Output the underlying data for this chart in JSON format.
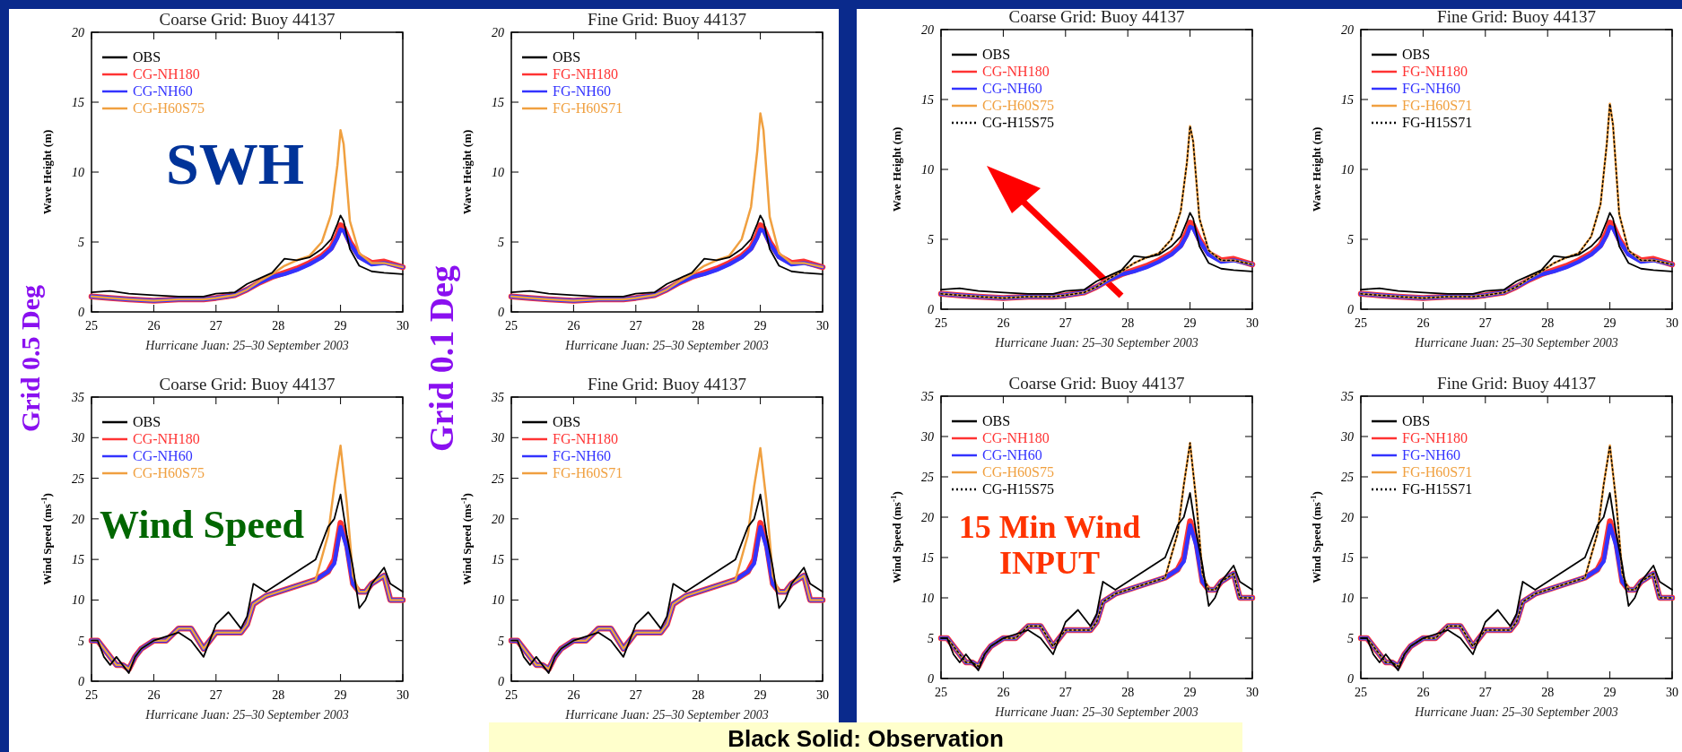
{
  "chart_data": [
    {
      "type": "line",
      "title": "Coarse Grid: Buoy 44137",
      "xlabel": "Hurricane Juan: 25–30 September 2003",
      "ylabel": "Wave Height (m)",
      "xlim": [
        25,
        30
      ],
      "xticks": [
        25,
        26,
        27,
        28,
        29,
        30
      ],
      "ylim": [
        0,
        20
      ],
      "yticks": [
        0,
        5,
        10,
        15,
        20
      ],
      "legend": "top left",
      "x": [
        25,
        25.3,
        25.6,
        26,
        26.4,
        26.8,
        27,
        27.3,
        27.5,
        27.7,
        27.9,
        28.1,
        28.3,
        28.5,
        28.7,
        28.85,
        28.95,
        29,
        29.05,
        29.15,
        29.3,
        29.5,
        29.7,
        30
      ],
      "series": [
        {
          "name": "OBS",
          "color": "#000000",
          "values": [
            1.4,
            1.5,
            1.3,
            1.2,
            1.1,
            1.1,
            1.3,
            1.4,
            2,
            2.4,
            2.8,
            3.8,
            3.7,
            3.9,
            4.5,
            5.2,
            6.3,
            6.9,
            6.5,
            4.5,
            3.3,
            2.9,
            2.8,
            2.7
          ]
        },
        {
          "name": "CG-NH180",
          "color": "#ff3333",
          "values": [
            1.1,
            1,
            0.9,
            0.8,
            0.9,
            0.9,
            1,
            1.2,
            1.6,
            2.1,
            2.5,
            2.8,
            3.1,
            3.5,
            4,
            4.6,
            5.5,
            6.2,
            6,
            5,
            4,
            3.5,
            3.6,
            3.2
          ]
        },
        {
          "name": "CG-NH60",
          "color": "#3333ff",
          "values": [
            1.1,
            1,
            0.9,
            0.8,
            0.9,
            0.9,
            1,
            1.2,
            1.6,
            2.1,
            2.5,
            2.7,
            3,
            3.4,
            3.9,
            4.5,
            5.3,
            5.9,
            5.8,
            4.9,
            3.9,
            3.4,
            3.5,
            3.2
          ]
        },
        {
          "name": "CG-H60S75",
          "color": "#f0a040",
          "values": [
            1.1,
            1,
            0.9,
            0.8,
            0.9,
            0.9,
            1,
            1.2,
            1.6,
            2.2,
            2.7,
            3.3,
            3.7,
            4,
            5,
            7,
            10.5,
            13,
            12,
            6.5,
            4.2,
            3.5,
            3.5,
            3.2
          ]
        }
      ]
    },
    {
      "type": "line",
      "title": "Fine Grid: Buoy 44137",
      "xlabel": "Hurricane Juan: 25–30 September 2003",
      "ylabel": "Wave Height (m)",
      "xlim": [
        25,
        30
      ],
      "xticks": [
        25,
        26,
        27,
        28,
        29,
        30
      ],
      "ylim": [
        0,
        20
      ],
      "yticks": [
        0,
        5,
        10,
        15,
        20
      ],
      "legend": "top left",
      "x": [
        25,
        25.3,
        25.6,
        26,
        26.4,
        26.8,
        27,
        27.3,
        27.5,
        27.7,
        27.9,
        28.1,
        28.3,
        28.5,
        28.7,
        28.85,
        28.95,
        29,
        29.05,
        29.15,
        29.3,
        29.5,
        29.7,
        30
      ],
      "series": [
        {
          "name": "OBS",
          "color": "#000000",
          "values": [
            1.4,
            1.5,
            1.3,
            1.2,
            1.1,
            1.1,
            1.3,
            1.4,
            2,
            2.4,
            2.8,
            3.8,
            3.7,
            3.9,
            4.5,
            5.2,
            6.3,
            6.9,
            6.5,
            4.5,
            3.3,
            2.9,
            2.8,
            2.7
          ]
        },
        {
          "name": "FG-NH180",
          "color": "#ff3333",
          "values": [
            1.1,
            1,
            0.9,
            0.8,
            0.9,
            0.9,
            1,
            1.2,
            1.6,
            2.1,
            2.5,
            2.8,
            3.1,
            3.5,
            4,
            4.6,
            5.5,
            6.2,
            6,
            5,
            4,
            3.5,
            3.6,
            3.2
          ]
        },
        {
          "name": "FG-NH60",
          "color": "#3333ff",
          "values": [
            1.1,
            1,
            0.9,
            0.8,
            0.9,
            0.9,
            1,
            1.2,
            1.6,
            2.1,
            2.5,
            2.7,
            3,
            3.4,
            3.9,
            4.5,
            5.3,
            5.9,
            5.8,
            4.9,
            3.9,
            3.4,
            3.5,
            3.2
          ]
        },
        {
          "name": "FG-H60S71",
          "color": "#f0a040",
          "values": [
            1.1,
            1,
            0.9,
            0.8,
            0.9,
            0.9,
            1,
            1.2,
            1.6,
            2.2,
            2.7,
            3.3,
            3.7,
            4,
            5.2,
            7.5,
            11.5,
            14.2,
            13,
            6.8,
            4.2,
            3.5,
            3.5,
            3.2
          ]
        }
      ]
    },
    {
      "type": "line",
      "title": "Coarse Grid: Buoy 44137",
      "xlabel": "Hurricane Juan: 25–30 September 2003",
      "ylabel": "Wave Height (m)",
      "xlim": [
        25,
        30
      ],
      "xticks": [
        25,
        26,
        27,
        28,
        29,
        30
      ],
      "ylim": [
        0,
        20
      ],
      "yticks": [
        0,
        5,
        10,
        15,
        20
      ],
      "legend": "top left",
      "x": [
        25,
        25.3,
        25.6,
        26,
        26.4,
        26.8,
        27,
        27.3,
        27.5,
        27.7,
        27.9,
        28.1,
        28.3,
        28.5,
        28.7,
        28.85,
        28.95,
        29,
        29.05,
        29.15,
        29.3,
        29.5,
        29.7,
        30
      ],
      "series": [
        {
          "name": "OBS",
          "color": "#000000",
          "values": [
            1.4,
            1.5,
            1.3,
            1.2,
            1.1,
            1.1,
            1.3,
            1.4,
            2,
            2.4,
            2.8,
            3.8,
            3.7,
            3.9,
            4.5,
            5.2,
            6.3,
            6.9,
            6.5,
            4.5,
            3.3,
            2.9,
            2.8,
            2.7
          ]
        },
        {
          "name": "CG-NH180",
          "color": "#ff3333",
          "values": [
            1.1,
            1,
            0.9,
            0.8,
            0.9,
            0.9,
            1,
            1.2,
            1.6,
            2.1,
            2.5,
            2.8,
            3.1,
            3.5,
            4,
            4.6,
            5.5,
            6.2,
            6,
            5,
            4,
            3.5,
            3.6,
            3.2
          ]
        },
        {
          "name": "CG-NH60",
          "color": "#3333ff",
          "values": [
            1.1,
            1,
            0.9,
            0.8,
            0.9,
            0.9,
            1,
            1.2,
            1.6,
            2.1,
            2.5,
            2.7,
            3,
            3.4,
            3.9,
            4.5,
            5.3,
            5.9,
            5.8,
            4.9,
            3.9,
            3.4,
            3.5,
            3.2
          ]
        },
        {
          "name": "CG-H60S75",
          "color": "#f0a040",
          "values": [
            1.1,
            1,
            0.9,
            0.8,
            0.9,
            0.9,
            1,
            1.2,
            1.6,
            2.2,
            2.7,
            3.3,
            3.7,
            4,
            5,
            7,
            10.5,
            13.1,
            12,
            6.5,
            4.2,
            3.5,
            3.5,
            3.2
          ]
        },
        {
          "name": "CG-H15S75",
          "color": "#000000",
          "line_style": "dotted",
          "values": [
            1.1,
            1,
            0.9,
            0.8,
            0.9,
            0.9,
            1,
            1.2,
            1.6,
            2.2,
            2.7,
            3.3,
            3.7,
            4,
            5,
            7,
            10.5,
            13.1,
            12,
            6.5,
            4.2,
            3.5,
            3.5,
            3.2
          ]
        }
      ]
    },
    {
      "type": "line",
      "title": "Fine Grid: Buoy 44137",
      "xlabel": "Hurricane Juan: 25–30 September 2003",
      "ylabel": "Wave Height (m)",
      "xlim": [
        25,
        30
      ],
      "xticks": [
        25,
        26,
        27,
        28,
        29,
        30
      ],
      "ylim": [
        0,
        20
      ],
      "yticks": [
        0,
        5,
        10,
        15,
        20
      ],
      "legend": "top left",
      "x": [
        25,
        25.3,
        25.6,
        26,
        26.4,
        26.8,
        27,
        27.3,
        27.5,
        27.7,
        27.9,
        28.1,
        28.3,
        28.5,
        28.7,
        28.85,
        28.95,
        29,
        29.05,
        29.15,
        29.3,
        29.5,
        29.7,
        30
      ],
      "series": [
        {
          "name": "OBS",
          "color": "#000000",
          "values": [
            1.4,
            1.5,
            1.3,
            1.2,
            1.1,
            1.1,
            1.3,
            1.4,
            2,
            2.4,
            2.8,
            3.8,
            3.7,
            3.9,
            4.5,
            5.2,
            6.3,
            6.9,
            6.5,
            4.5,
            3.3,
            2.9,
            2.8,
            2.7
          ]
        },
        {
          "name": "FG-NH180",
          "color": "#ff3333",
          "values": [
            1.1,
            1,
            0.9,
            0.8,
            0.9,
            0.9,
            1,
            1.2,
            1.6,
            2.1,
            2.5,
            2.8,
            3.1,
            3.5,
            4,
            4.6,
            5.5,
            6.2,
            6,
            5,
            4,
            3.5,
            3.6,
            3.2
          ]
        },
        {
          "name": "FG-NH60",
          "color": "#3333ff",
          "values": [
            1.1,
            1,
            0.9,
            0.8,
            0.9,
            0.9,
            1,
            1.2,
            1.6,
            2.1,
            2.5,
            2.7,
            3,
            3.4,
            3.9,
            4.5,
            5.3,
            5.9,
            5.8,
            4.9,
            3.9,
            3.4,
            3.5,
            3.2
          ]
        },
        {
          "name": "FG-H60S71",
          "color": "#f0a040",
          "values": [
            1.1,
            1,
            0.9,
            0.8,
            0.9,
            0.9,
            1,
            1.2,
            1.6,
            2.2,
            2.7,
            3.3,
            3.7,
            4,
            5.2,
            7.5,
            11.8,
            14.7,
            13.2,
            6.8,
            4.2,
            3.5,
            3.5,
            3.2
          ]
        },
        {
          "name": "FG-H15S71",
          "color": "#000000",
          "line_style": "dotted",
          "values": [
            1.1,
            1,
            0.9,
            0.8,
            0.9,
            0.9,
            1,
            1.2,
            1.6,
            2.2,
            2.7,
            3.3,
            3.7,
            4,
            5.2,
            7.5,
            11.8,
            14.7,
            13.2,
            6.8,
            4.2,
            3.5,
            3.5,
            3.2
          ]
        }
      ]
    },
    {
      "type": "line",
      "title": "Coarse Grid: Buoy 44137",
      "xlabel": "Hurricane Juan: 25–30 September 2003",
      "ylabel": "Wind Speed (ms$^{-1}$)",
      "xlim": [
        25,
        30
      ],
      "xticks": [
        25,
        26,
        27,
        28,
        29,
        30
      ],
      "ylim": [
        0,
        35
      ],
      "yticks": [
        0,
        5,
        10,
        15,
        20,
        25,
        30,
        35
      ],
      "legend": "top left",
      "x": [
        25,
        25.1,
        25.2,
        25.3,
        25.4,
        25.5,
        25.6,
        25.7,
        25.8,
        26,
        26.2,
        26.4,
        26.6,
        26.8,
        27,
        27.2,
        27.4,
        27.5,
        27.6,
        27.8,
        28,
        28.2,
        28.4,
        28.6,
        28.8,
        28.9,
        29,
        29.1,
        29.2,
        29.3,
        29.4,
        29.5,
        29.7,
        29.8,
        30
      ],
      "series": [
        {
          "name": "OBS",
          "color": "#000000",
          "values": [
            5,
            5,
            3,
            2,
            3,
            2,
            1,
            3,
            4,
            5,
            5.5,
            6,
            5,
            3,
            7,
            8.5,
            6.5,
            8,
            12,
            11,
            12,
            13,
            14,
            15,
            19,
            20,
            23,
            18,
            14,
            9,
            10,
            12,
            14,
            12,
            11
          ]
        },
        {
          "name": "CG-NH180",
          "color": "#ff3333",
          "values": [
            5,
            5,
            4,
            3,
            2,
            2,
            1.5,
            3,
            4,
            5,
            5,
            6.5,
            6.5,
            4,
            6,
            6,
            6,
            7,
            9.5,
            10.5,
            11,
            11.5,
            12,
            12.5,
            13.5,
            15,
            19.5,
            17,
            12,
            11,
            11,
            12,
            13,
            10,
            10
          ]
        },
        {
          "name": "CG-NH60",
          "color": "#3333ff",
          "values": [
            5,
            5,
            4,
            3,
            2,
            2,
            1.5,
            3,
            4,
            5,
            5,
            6.5,
            6.5,
            4,
            6,
            6,
            6,
            7,
            9.5,
            10.5,
            11,
            11.5,
            12,
            12.5,
            13.5,
            14.5,
            19,
            16.5,
            12,
            11,
            11,
            12,
            13,
            10,
            10
          ]
        },
        {
          "name": "CG-H60S75",
          "color": "#f0a040",
          "values": [
            5,
            5,
            4,
            3,
            2,
            2,
            1.5,
            3,
            4,
            5,
            5,
            6.5,
            6.5,
            4,
            6,
            6,
            6,
            7,
            9.5,
            10.5,
            11,
            11.5,
            12,
            12.5,
            18,
            24,
            29,
            22,
            13,
            11,
            11,
            12,
            13,
            10,
            10
          ]
        }
      ]
    },
    {
      "type": "line",
      "title": "Fine Grid: Buoy 44137",
      "xlabel": "Hurricane Juan: 25–30 September 2003",
      "ylabel": "Wind Speed (ms$^{-1}$)",
      "xlim": [
        25,
        30
      ],
      "xticks": [
        25,
        26,
        27,
        28,
        29,
        30
      ],
      "ylim": [
        0,
        35
      ],
      "yticks": [
        0,
        5,
        10,
        15,
        20,
        25,
        30,
        35
      ],
      "legend": "top left",
      "x": [
        25,
        25.1,
        25.2,
        25.3,
        25.4,
        25.5,
        25.6,
        25.7,
        25.8,
        26,
        26.2,
        26.4,
        26.6,
        26.8,
        27,
        27.2,
        27.4,
        27.5,
        27.6,
        27.8,
        28,
        28.2,
        28.4,
        28.6,
        28.8,
        28.9,
        29,
        29.1,
        29.2,
        29.3,
        29.4,
        29.5,
        29.7,
        29.8,
        30
      ],
      "series": [
        {
          "name": "OBS",
          "color": "#000000",
          "values": [
            5,
            5,
            3,
            2,
            3,
            2,
            1,
            3,
            4,
            5,
            5.5,
            6,
            5,
            3,
            7,
            8.5,
            6.5,
            8,
            12,
            11,
            12,
            13,
            14,
            15,
            19,
            20,
            23,
            18,
            14,
            9,
            10,
            12,
            14,
            12,
            11
          ]
        },
        {
          "name": "FG-NH180",
          "color": "#ff3333",
          "values": [
            5,
            5,
            4,
            3,
            2,
            2,
            1.5,
            3,
            4,
            5,
            5,
            6.5,
            6.5,
            4,
            6,
            6,
            6,
            7,
            9.5,
            10.5,
            11,
            11.5,
            12,
            12.5,
            13.5,
            15,
            19.5,
            17,
            12,
            11,
            11,
            12,
            13,
            10,
            10
          ]
        },
        {
          "name": "FG-NH60",
          "color": "#3333ff",
          "values": [
            5,
            5,
            4,
            3,
            2,
            2,
            1.5,
            3,
            4,
            5,
            5,
            6.5,
            6.5,
            4,
            6,
            6,
            6,
            7,
            9.5,
            10.5,
            11,
            11.5,
            12,
            12.5,
            13.5,
            14.5,
            19,
            16.5,
            12,
            11,
            11,
            12,
            13,
            10,
            10
          ]
        },
        {
          "name": "FG-H60S71",
          "color": "#f0a040",
          "values": [
            5,
            5,
            4,
            3,
            2,
            2,
            1.5,
            3,
            4,
            5,
            5,
            6.5,
            6.5,
            4,
            6,
            6,
            6,
            7,
            9.5,
            10.5,
            11,
            11.5,
            12,
            12.5,
            18,
            24,
            28.7,
            22,
            13,
            11,
            11,
            12,
            13,
            10,
            10
          ]
        }
      ]
    },
    {
      "type": "line",
      "title": "Coarse Grid: Buoy 44137",
      "xlabel": "Hurricane Juan: 25–30 September 2003",
      "ylabel": "Wind Speed (ms$^{-1}$)",
      "xlim": [
        25,
        30
      ],
      "xticks": [
        25,
        26,
        27,
        28,
        29,
        30
      ],
      "ylim": [
        0,
        35
      ],
      "yticks": [
        0,
        5,
        10,
        15,
        20,
        25,
        30,
        35
      ],
      "legend": "top left",
      "x": [
        25,
        25.1,
        25.2,
        25.3,
        25.4,
        25.5,
        25.6,
        25.7,
        25.8,
        26,
        26.2,
        26.4,
        26.6,
        26.8,
        27,
        27.2,
        27.4,
        27.5,
        27.6,
        27.8,
        28,
        28.2,
        28.4,
        28.6,
        28.8,
        28.9,
        29,
        29.1,
        29.2,
        29.3,
        29.4,
        29.5,
        29.7,
        29.8,
        30
      ],
      "series": [
        {
          "name": "OBS",
          "color": "#000000",
          "values": [
            5,
            5,
            3,
            2,
            3,
            2,
            1,
            3,
            4,
            5,
            5.5,
            6,
            5,
            3,
            7,
            8.5,
            6.5,
            8,
            12,
            11,
            12,
            13,
            14,
            15,
            19,
            20,
            23,
            18,
            14,
            9,
            10,
            12,
            14,
            12,
            11
          ]
        },
        {
          "name": "CG-NH180",
          "color": "#ff3333",
          "values": [
            5,
            5,
            4,
            3,
            2,
            2,
            1.5,
            3,
            4,
            5,
            5,
            6.5,
            6.5,
            4,
            6,
            6,
            6,
            7,
            9.5,
            10.5,
            11,
            11.5,
            12,
            12.5,
            13.5,
            15,
            19.5,
            17,
            12,
            11,
            11,
            12,
            13,
            10,
            10
          ]
        },
        {
          "name": "CG-NH60",
          "color": "#3333ff",
          "values": [
            5,
            5,
            4,
            3,
            2,
            2,
            1.5,
            3,
            4,
            5,
            5,
            6.5,
            6.5,
            4,
            6,
            6,
            6,
            7,
            9.5,
            10.5,
            11,
            11.5,
            12,
            12.5,
            13.5,
            14.5,
            19,
            16.5,
            12,
            11,
            11,
            12,
            13,
            10,
            10
          ]
        },
        {
          "name": "CG-H60S75",
          "color": "#f0a040",
          "values": [
            5,
            5,
            4,
            3,
            2,
            2,
            1.5,
            3,
            4,
            5,
            5,
            6.5,
            6.5,
            4,
            6,
            6,
            6,
            7,
            9.5,
            10.5,
            11,
            11.5,
            12,
            12.5,
            18,
            24,
            29.2,
            22,
            13,
            11,
            11,
            12,
            13,
            10,
            10
          ]
        },
        {
          "name": "CG-H15S75",
          "color": "#000000",
          "line_style": "dotted",
          "values": [
            5,
            5,
            4,
            3,
            2,
            2,
            1.5,
            3,
            4,
            5,
            5,
            6.5,
            6.5,
            4,
            6,
            6,
            6,
            7,
            9.5,
            10.5,
            11,
            11.5,
            12,
            12.5,
            18,
            24,
            29.2,
            22,
            13,
            11,
            11,
            12,
            13,
            10,
            10
          ]
        }
      ]
    },
    {
      "type": "line",
      "title": "Fine Grid: Buoy 44137",
      "xlabel": "Hurricane Juan: 25–30 September 2003",
      "ylabel": "Wind Speed (ms$^{-1}$)",
      "xlim": [
        25,
        30
      ],
      "xticks": [
        25,
        26,
        27,
        28,
        29,
        30
      ],
      "ylim": [
        0,
        35
      ],
      "yticks": [
        0,
        5,
        10,
        15,
        20,
        25,
        30,
        35
      ],
      "legend": "top left",
      "x": [
        25,
        25.1,
        25.2,
        25.3,
        25.4,
        25.5,
        25.6,
        25.7,
        25.8,
        26,
        26.2,
        26.4,
        26.6,
        26.8,
        27,
        27.2,
        27.4,
        27.5,
        27.6,
        27.8,
        28,
        28.2,
        28.4,
        28.6,
        28.8,
        28.9,
        29,
        29.1,
        29.2,
        29.3,
        29.4,
        29.5,
        29.7,
        29.8,
        30
      ],
      "series": [
        {
          "name": "OBS",
          "color": "#000000",
          "values": [
            5,
            5,
            3,
            2,
            3,
            2,
            1,
            3,
            4,
            5,
            5.5,
            6,
            5,
            3,
            7,
            8.5,
            6.5,
            8,
            12,
            11,
            12,
            13,
            14,
            15,
            19,
            20,
            23,
            18,
            14,
            9,
            10,
            12,
            14,
            12,
            11
          ]
        },
        {
          "name": "FG-NH180",
          "color": "#ff3333",
          "values": [
            5,
            5,
            4,
            3,
            2,
            2,
            1.5,
            3,
            4,
            5,
            5,
            6.5,
            6.5,
            4,
            6,
            6,
            6,
            7,
            9.5,
            10.5,
            11,
            11.5,
            12,
            12.5,
            13.5,
            15,
            19.5,
            17,
            12,
            11,
            11,
            12,
            13,
            10,
            10
          ]
        },
        {
          "name": "FG-NH60",
          "color": "#3333ff",
          "values": [
            5,
            5,
            4,
            3,
            2,
            2,
            1.5,
            3,
            4,
            5,
            5,
            6.5,
            6.5,
            4,
            6,
            6,
            6,
            7,
            9.5,
            10.5,
            11,
            11.5,
            12,
            12.5,
            13.5,
            14.5,
            19,
            16.5,
            12,
            11,
            11,
            12,
            13,
            10,
            10
          ]
        },
        {
          "name": "FG-H60S71",
          "color": "#f0a040",
          "values": [
            5,
            5,
            4,
            3,
            2,
            2,
            1.5,
            3,
            4,
            5,
            5,
            6.5,
            6.5,
            4,
            6,
            6,
            6,
            7,
            9.5,
            10.5,
            11,
            11.5,
            12,
            12.5,
            18,
            24,
            28.9,
            22,
            13,
            11,
            11,
            12,
            13,
            10,
            10
          ]
        },
        {
          "name": "FG-H15S71",
          "color": "#000000",
          "line_style": "dotted",
          "values": [
            5,
            5,
            4,
            3,
            2,
            2,
            1.5,
            3,
            4,
            5,
            5,
            6.5,
            6.5,
            4,
            6,
            6,
            6,
            7,
            9.5,
            10.5,
            11,
            11.5,
            12,
            12.5,
            18,
            24,
            28.9,
            22,
            13,
            11,
            11,
            12,
            13,
            10,
            10
          ]
        }
      ]
    },
    {
      "type": "other",
      "annotations": [
        "Grid 0.5 Deg",
        "SWH",
        "Grid 0.1 Deg",
        "Wind Speed",
        "15 Min Wind",
        "INPUT",
        "Black Solid: Observation"
      ]
    }
  ]
}
